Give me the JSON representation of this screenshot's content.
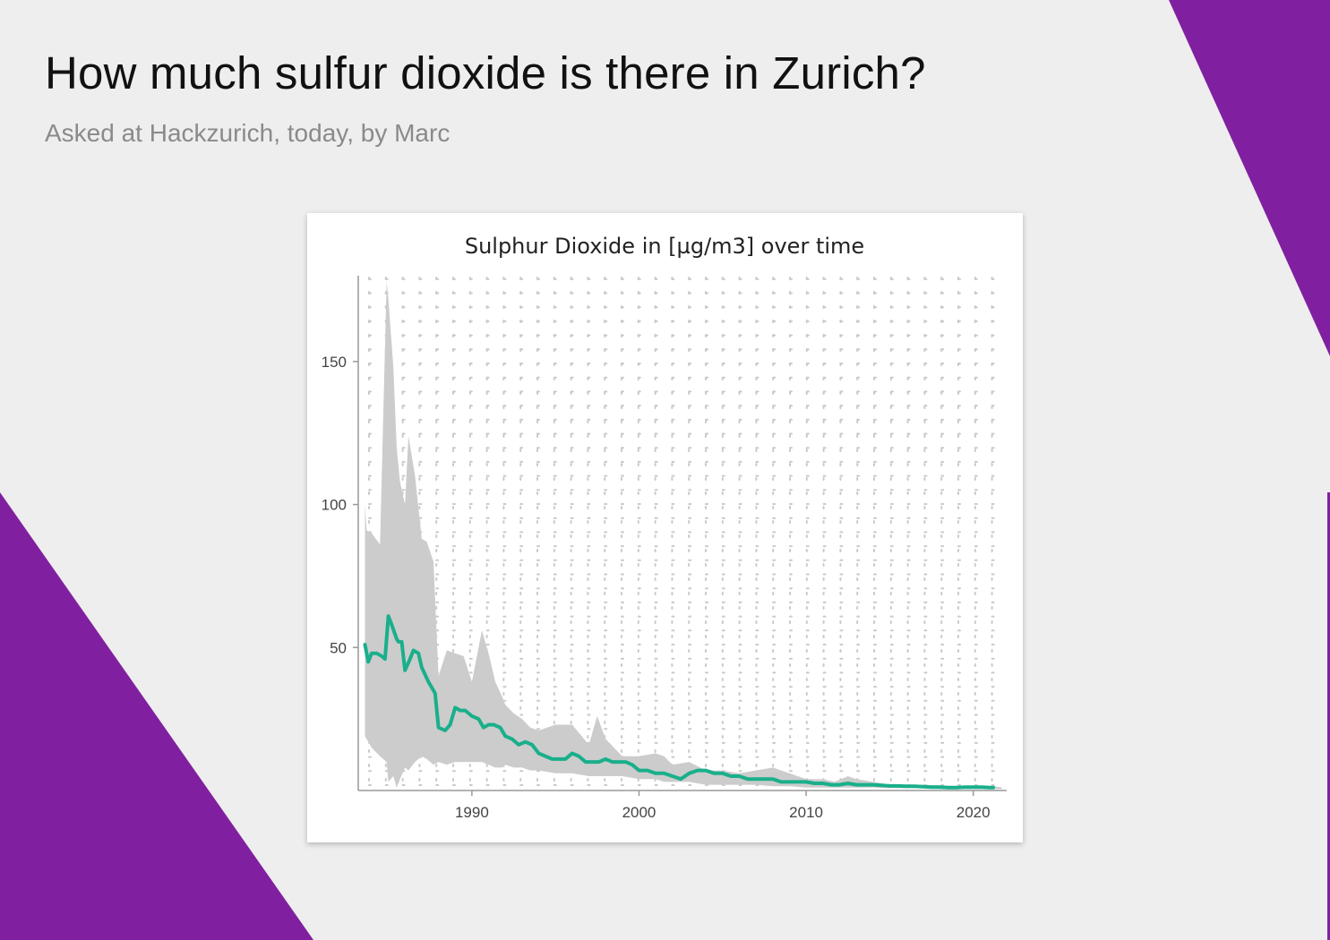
{
  "header": {
    "title": "How much sulfur dioxide is there in Zurich?",
    "subtitle": "Asked at Hackzurich, today, by Marc"
  },
  "colors": {
    "background": "#eeeeee",
    "accent_purple": "#8020a0",
    "line": "#1aaf8b",
    "band": "#cccccc"
  },
  "chart_data": {
    "type": "line",
    "title": "Sulphur Dioxide in [µg/m3] over time",
    "xlabel": "",
    "ylabel": "",
    "xlim": [
      1983.2,
      2022
    ],
    "ylim": [
      0,
      180
    ],
    "x_ticks": [
      1990,
      2000,
      2010,
      2020
    ],
    "y_ticks": [
      50,
      100,
      150
    ],
    "grid": "dotted",
    "legend": "none",
    "series": [
      {
        "kind": "line",
        "x": [
          1983.6,
          1983.8,
          1984.0,
          1984.3,
          1984.6,
          1984.8,
          1985.0,
          1985.2,
          1985.5,
          1985.6,
          1985.8,
          1986.0,
          1986.3,
          1986.5,
          1986.8,
          1987.0,
          1987.4,
          1987.6,
          1987.8,
          1988.0,
          1988.4,
          1988.7,
          1989.0,
          1989.3,
          1989.6,
          1990.0,
          1990.4,
          1990.7,
          1991.0,
          1991.3,
          1991.7,
          1992.0,
          1992.4,
          1992.8,
          1993.2,
          1993.6,
          1994.0,
          1994.4,
          1994.8,
          1995.2,
          1995.6,
          1996.0,
          1996.4,
          1996.8,
          1997.2,
          1997.6,
          1998.0,
          1998.4,
          1998.8,
          1999.2,
          1999.6,
          2000.0,
          2000.5,
          2001.0,
          2001.5,
          2002.0,
          2002.5,
          2003.0,
          2003.5,
          2004.0,
          2004.5,
          2005.0,
          2005.5,
          2006.0,
          2006.5,
          2007.0,
          2007.5,
          2008.0,
          2008.5,
          2009.0,
          2009.5,
          2010.0,
          2010.5,
          2011.0,
          2011.5,
          2012.0,
          2012.5,
          2013.0,
          2013.5,
          2014.0,
          2014.5,
          2015.0,
          2015.5,
          2016.0,
          2016.5,
          2017.0,
          2017.5,
          2018.0,
          2018.5,
          2019.0,
          2019.5,
          2020.0,
          2020.5,
          2021.0,
          2021.2
        ],
        "y": [
          51,
          45,
          48,
          48,
          47,
          46,
          61,
          58,
          53,
          52,
          52,
          42,
          46,
          49,
          48,
          43,
          38,
          36,
          34,
          22,
          21,
          23,
          29,
          28,
          28,
          26,
          25,
          22,
          23,
          23,
          22,
          19,
          18,
          16,
          17,
          16,
          13,
          12,
          11,
          11,
          11,
          13,
          12,
          10,
          10,
          10,
          11,
          10,
          10,
          10,
          9,
          7,
          7,
          6,
          6,
          5,
          4,
          6,
          7,
          7,
          6,
          6,
          5,
          5,
          4,
          4,
          4,
          4,
          3,
          3,
          3,
          3,
          2.5,
          2.5,
          2,
          2,
          2.5,
          2,
          2,
          2,
          1.8,
          1.6,
          1.6,
          1.5,
          1.5,
          1.3,
          1.2,
          1.2,
          1,
          1,
          1.2,
          1.2,
          1.2,
          1,
          1
        ]
      },
      {
        "kind": "band",
        "x": [
          1983.6,
          1983.7,
          1984.0,
          1984.5,
          1984.9,
          1985.0,
          1985.3,
          1985.5,
          1985.7,
          1986.0,
          1986.2,
          1986.6,
          1987.0,
          1987.3,
          1987.7,
          1988.0,
          1988.5,
          1989.0,
          1989.5,
          1990.0,
          1990.6,
          1991.0,
          1991.4,
          1991.8,
          1992.0,
          1992.5,
          1993.0,
          1993.5,
          1994.0,
          1995.0,
          1996.0,
          1997.0,
          1997.5,
          1998.0,
          1999.0,
          2000.0,
          2001.0,
          2001.5,
          2002.0,
          2003.0,
          2004.0,
          2005.0,
          2006.0,
          2007.0,
          2008.0,
          2009.0,
          2010.0,
          2011.0,
          2011.7,
          2012.5,
          2013.0,
          2014.0,
          2015.0,
          2016.0,
          2017.0,
          2018.0,
          2019.0,
          2020.0,
          2021.0,
          2021.7
        ],
        "low": [
          19,
          18,
          15,
          12,
          10,
          3,
          5,
          1,
          4,
          8,
          7,
          10,
          12,
          11,
          9,
          10,
          9,
          10,
          10,
          10,
          10,
          9,
          8,
          8,
          9,
          8,
          8,
          7,
          7,
          6,
          6,
          5,
          5,
          5,
          5,
          4,
          4,
          3,
          3,
          3,
          2,
          2,
          2,
          2,
          1.5,
          1.5,
          1,
          1,
          1,
          1,
          1,
          1,
          0.8,
          0.8,
          0.8,
          0.6,
          0.6,
          0.5,
          0.5,
          0.5
        ],
        "high": [
          100,
          91,
          90,
          86,
          178,
          172,
          148,
          120,
          108,
          100,
          124,
          110,
          88,
          87,
          80,
          40,
          49,
          48,
          47,
          38,
          56,
          48,
          38,
          33,
          30,
          27,
          25,
          22,
          21,
          23,
          23,
          16,
          26,
          18,
          12,
          12,
          13,
          12,
          9,
          10,
          7,
          7,
          6,
          7,
          8,
          6,
          4,
          4,
          3,
          5,
          4,
          3,
          2,
          2,
          2,
          1.8,
          1.5,
          1.4,
          1.5,
          1.2
        ]
      }
    ]
  }
}
